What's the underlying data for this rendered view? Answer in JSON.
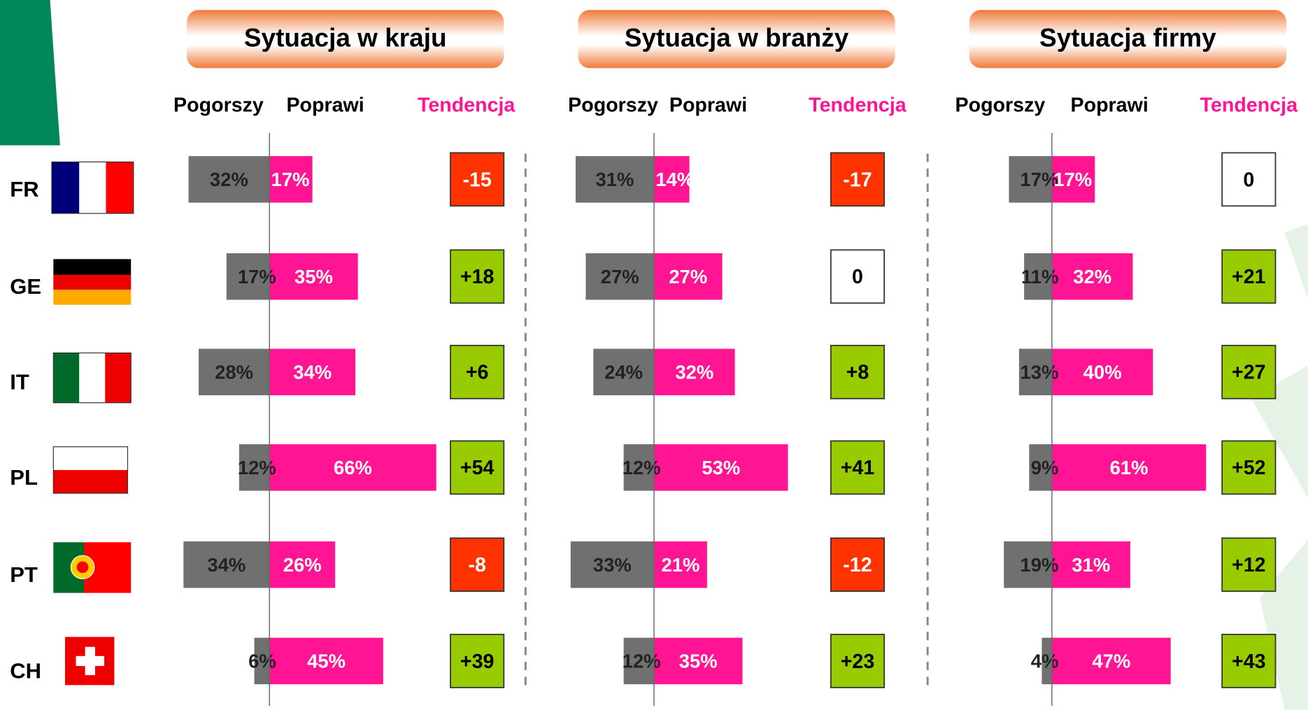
{
  "countries": [
    "FR",
    "GE",
    "IT",
    "PL",
    "PT",
    "CH"
  ],
  "trend_colors": {
    "negative": "#ff3300",
    "positive": "#99cc00",
    "zero": "#ffffff"
  },
  "chart_data": [
    {
      "type": "diverging-bar",
      "title": "Sytuacja w kraju",
      "trend_label": "Tendencja",
      "series": [
        {
          "name": "Pogorszy",
          "color": "#707070",
          "values": [
            32,
            17,
            28,
            12,
            34,
            6
          ],
          "value_labels": [
            "32%",
            "17%",
            "28%",
            "12%",
            "34%",
            "6%"
          ]
        },
        {
          "name": "Poprawi",
          "color": "#ff1493",
          "values": [
            17,
            35,
            34,
            66,
            26,
            45
          ],
          "value_labels": [
            "17%",
            "35%",
            "34%",
            "66%",
            "26%",
            "45%"
          ]
        }
      ],
      "trend": {
        "values": [
          -15,
          18,
          6,
          54,
          -8,
          39
        ],
        "value_labels": [
          "-15",
          "+18",
          "+6",
          "+54",
          "-8",
          "+39"
        ]
      }
    },
    {
      "type": "diverging-bar",
      "title": "Sytuacja w branży",
      "trend_label": "Tendencja",
      "series": [
        {
          "name": "Pogorszy",
          "color": "#707070",
          "values": [
            31,
            27,
            24,
            12,
            33,
            12
          ],
          "value_labels": [
            "31%",
            "27%",
            "24%",
            "12%",
            "33%",
            "12%"
          ]
        },
        {
          "name": "Poprawi",
          "color": "#ff1493",
          "values": [
            14,
            27,
            32,
            53,
            21,
            35
          ],
          "value_labels": [
            "14%",
            "27%",
            "32%",
            "53%",
            "21%",
            "35%"
          ]
        }
      ],
      "trend": {
        "values": [
          -17,
          0,
          8,
          41,
          -12,
          23
        ],
        "value_labels": [
          "-17",
          "0",
          "+8",
          "+41",
          "-12",
          "+23"
        ]
      }
    },
    {
      "type": "diverging-bar",
      "title": "Sytuacja firmy",
      "trend_label": "Tendencja",
      "series": [
        {
          "name": "Pogorszy",
          "color": "#707070",
          "values": [
            17,
            11,
            13,
            9,
            19,
            4
          ],
          "value_labels": [
            "17%",
            "11%",
            "13%",
            "9%",
            "19%",
            "4%"
          ]
        },
        {
          "name": "Poprawi",
          "color": "#ff1493",
          "values": [
            17,
            32,
            40,
            61,
            31,
            47
          ],
          "value_labels": [
            "17%",
            "32%",
            "40%",
            "61%",
            "31%",
            "47%"
          ]
        }
      ],
      "trend": {
        "values": [
          0,
          21,
          27,
          52,
          12,
          43
        ],
        "value_labels": [
          "0",
          "+21",
          "+27",
          "+52",
          "+12",
          "+43"
        ]
      }
    }
  ]
}
